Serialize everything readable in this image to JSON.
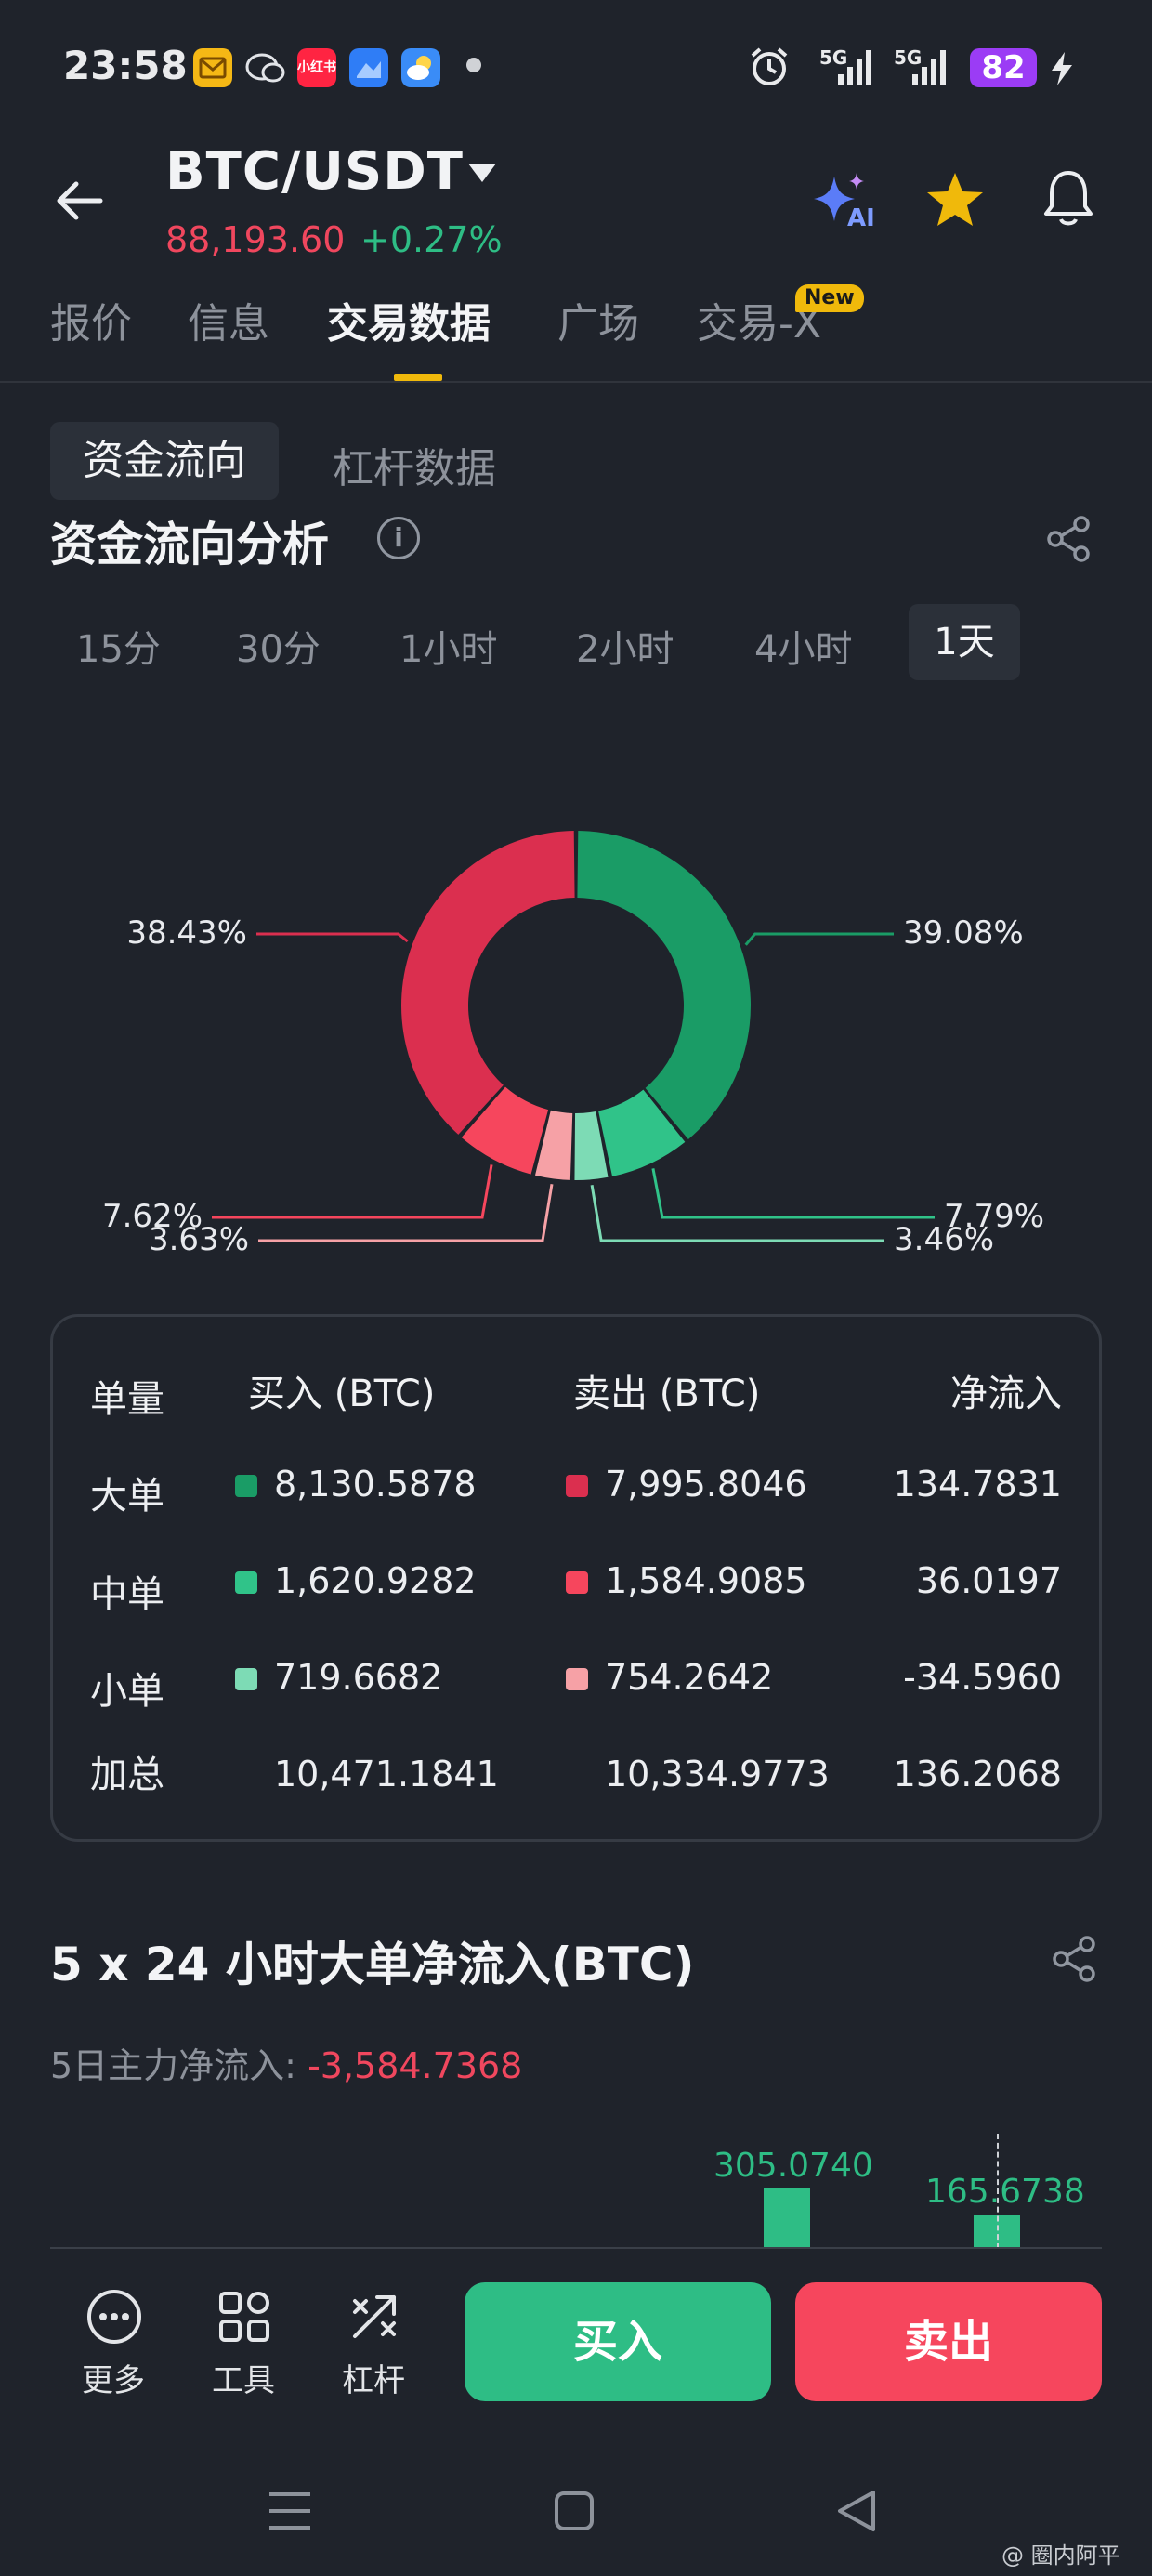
{
  "status_bar": {
    "time": "23:58",
    "network_1": "5G",
    "network_2": "5G",
    "battery": "82",
    "app_icons": [
      "mail-app-icon",
      "chat-app-icon",
      "xiaohongshu-app-icon",
      "files-app-icon",
      "weather-app-icon"
    ],
    "xiaohongshu_label": "小红书"
  },
  "header": {
    "pair": "BTC/USDT",
    "price": "88,193.60",
    "change": "+0.27%",
    "ai_label": "AI"
  },
  "tabs": [
    {
      "label": "报价"
    },
    {
      "label": "信息"
    },
    {
      "label": "交易数据"
    },
    {
      "label": "广场"
    },
    {
      "label": "交易-X"
    }
  ],
  "new_badge": "New",
  "subtabs": {
    "active": "资金流向",
    "other": "杠杆数据"
  },
  "section1": {
    "title": "资金流向分析",
    "info_glyph": "i"
  },
  "ranges": [
    {
      "label": "15分"
    },
    {
      "label": "30分"
    },
    {
      "label": "1小时"
    },
    {
      "label": "2小时"
    },
    {
      "label": "4小时"
    },
    {
      "label": "1天"
    }
  ],
  "chart_data": {
    "type": "pie",
    "slices": [
      {
        "label": "39.08%",
        "value": 39.08,
        "color": "#1a9c66"
      },
      {
        "label": "7.79%",
        "value": 7.79,
        "color": "#30c389"
      },
      {
        "label": "3.46%",
        "value": 3.46,
        "color": "#7ddbb5"
      },
      {
        "label": "3.63%",
        "value": 3.63,
        "color": "#f6a1a6"
      },
      {
        "label": "7.62%",
        "value": 7.62,
        "color": "#f6465d"
      },
      {
        "label": "38.43%",
        "value": 38.43,
        "color": "#db2f4f"
      }
    ]
  },
  "flow_table": {
    "headers": [
      "单量",
      "买入 (BTC)",
      "卖出 (BTC)",
      "净流入"
    ],
    "rows": [
      {
        "label": "大单",
        "buy": "8,130.5878",
        "sell": "7,995.8046",
        "net": "134.7831",
        "buy_color": "#1a9c66",
        "sell_color": "#db2f4f"
      },
      {
        "label": "中单",
        "buy": "1,620.9282",
        "sell": "1,584.9085",
        "net": "36.0197",
        "buy_color": "#30c389",
        "sell_color": "#f6465d"
      },
      {
        "label": "小单",
        "buy": "719.6682",
        "sell": "754.2642",
        "net": "-34.5960",
        "buy_color": "#7ddbb5",
        "sell_color": "#f6a1a6"
      }
    ],
    "total": {
      "label": "加总",
      "buy": "10,471.1841",
      "sell": "10,334.9773",
      "net": "136.2068"
    }
  },
  "section2": {
    "title": "5 x 24 小时大单净流入(BTC)",
    "sub_label": "5日主力净流入: ",
    "sub_value": "-3,584.7368",
    "bars": [
      {
        "label": "305.0740",
        "value": 305.074
      },
      {
        "label": "165.6738",
        "value": 165.6738
      }
    ]
  },
  "toolbar": {
    "more": "更多",
    "tools": "工具",
    "leverage": "杠杆",
    "buy": "买入",
    "sell": "卖出"
  },
  "watermark": "@ 圈内阿平"
}
